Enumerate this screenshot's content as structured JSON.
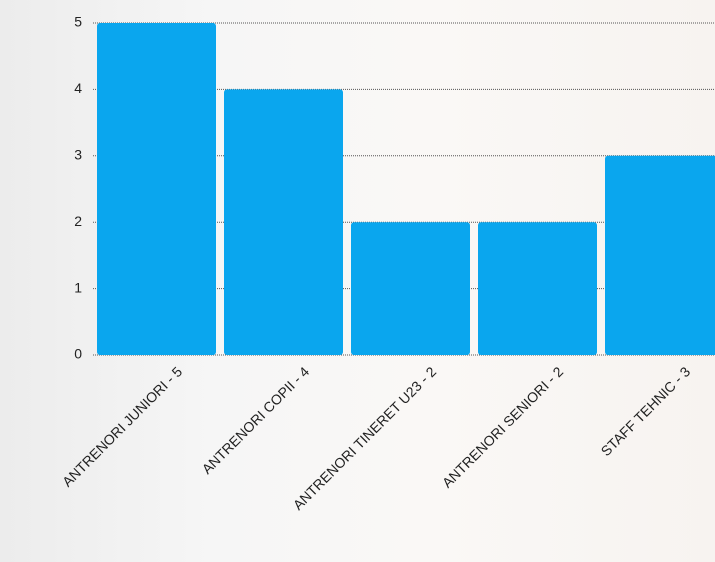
{
  "chart_data": {
    "type": "bar",
    "categories": [
      "ANTRENORI JUNIORI - 5",
      "ANTRENORI COPII - 4",
      "ANTRENORI TINERET U23 - 2",
      "ANTRENORI SENIORI - 2",
      "STAFF TEHNIC - 3"
    ],
    "values": [
      5,
      4,
      2,
      2,
      3
    ],
    "color": "#0aa6ee",
    "ylim": [
      0,
      5
    ],
    "yticks": [
      0,
      1,
      2,
      3,
      4,
      5
    ],
    "grid": true
  }
}
